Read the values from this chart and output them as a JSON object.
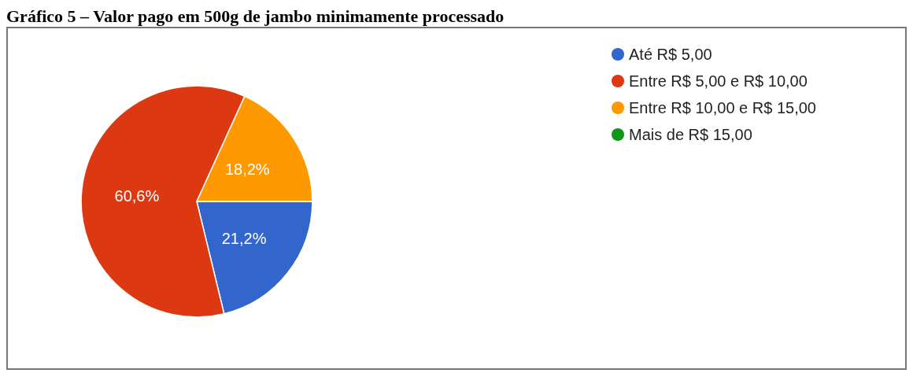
{
  "chart_data": {
    "type": "pie",
    "title": "Gráfico 5 – Valor pago em 500g de jambo minimamente processado",
    "categories": [
      "Até R$ 5,00",
      "Entre R$ 5,00 e R$ 10,00",
      "Entre R$ 10,00 e R$ 15,00",
      "Mais de R$ 15,00"
    ],
    "values": [
      21.2,
      60.6,
      18.2,
      0
    ],
    "colors": [
      "#3366cc",
      "#dc3912",
      "#ff9900",
      "#109618"
    ],
    "value_labels": [
      "21,2%",
      "60,6%",
      "18,2%",
      null
    ],
    "legend": "top right"
  }
}
